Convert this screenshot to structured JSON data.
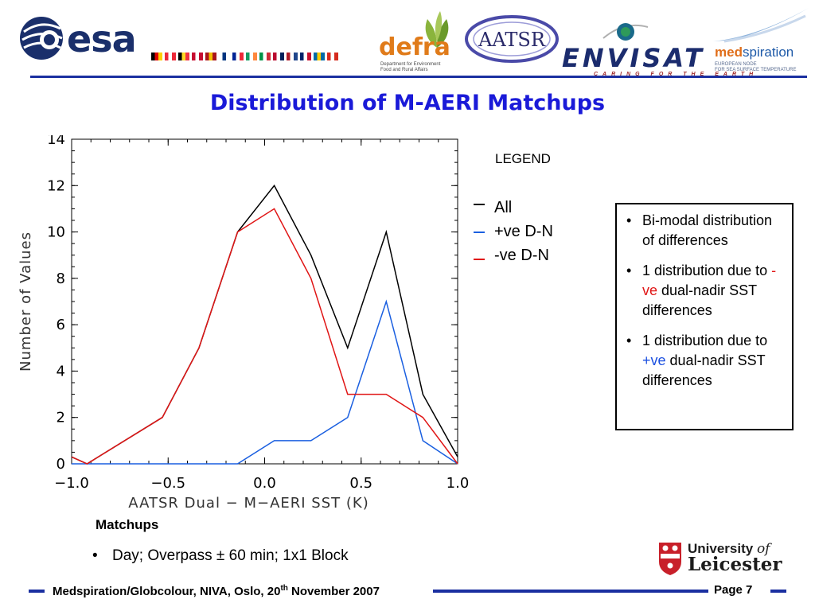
{
  "header": {
    "esa_text": "esa",
    "defra_word": "defra",
    "defra_sub": "Department for Environment Food and Rural Affairs",
    "aatsr_text": "AATSR",
    "envisat_word": "ENVISAT",
    "envisat_sub": "CARING FOR THE EARTH",
    "med_word_a": "med",
    "med_word_b": "spiration",
    "med_sub1": "EUROPEAN NODE",
    "med_sub2": "FOR SEA SURFACE TEMPERATURE",
    "flag_colors": [
      [
        "#000000",
        "#dd0000",
        "#ffce00"
      ],
      [
        "#ed2939",
        "#ffffff",
        "#ed2939"
      ],
      [
        "#000000",
        "#fdda24",
        "#ef3340"
      ],
      [
        "#c60c30",
        "#ffffff",
        "#c60c30"
      ],
      [
        "#aa151b",
        "#f1bf00",
        "#aa151b"
      ],
      [
        "#ffffff",
        "#003580",
        "#ffffff"
      ],
      [
        "#002395",
        "#ffffff",
        "#ed2939"
      ],
      [
        "#169b62",
        "#ffffff",
        "#ff883e"
      ],
      [
        "#009246",
        "#ffffff",
        "#ce2b37"
      ],
      [
        "#ba0c2f",
        "#ffffff",
        "#00205b"
      ],
      [
        "#ae1c28",
        "#ffffff",
        "#21468b"
      ],
      [
        "#012169",
        "#ffffff",
        "#c8102e"
      ],
      [
        "#006aa7",
        "#fecc00",
        "#006aa7"
      ],
      [
        "#d52b1e",
        "#ffffff",
        "#d52b1e"
      ]
    ]
  },
  "title": "Distribution of M-AERI Matchups",
  "chart_data": {
    "type": "line",
    "xlabel": "AATSR Dual − M−AERI SST (K)",
    "ylabel": "Number of Values",
    "xlim": [
      -1.0,
      1.0
    ],
    "ylim": [
      0,
      14
    ],
    "x_ticks": [
      -1.0,
      -0.5,
      0.0,
      0.5,
      1.0
    ],
    "x_tick_labels": [
      "−1.0",
      "−0.5",
      "0.0",
      "0.5",
      "1.0"
    ],
    "y_ticks": [
      0,
      2,
      4,
      6,
      8,
      10,
      12,
      14
    ],
    "y_tick_labels": [
      "0",
      "2",
      "4",
      "6",
      "8",
      "10",
      "12",
      "14"
    ],
    "grid": false,
    "series": [
      {
        "name": "All",
        "color": "#000000",
        "x": [
          -1.0,
          -0.92,
          -0.53,
          -0.34,
          -0.14,
          0.05,
          0.24,
          0.43,
          0.63,
          0.82,
          1.0
        ],
        "y": [
          0.3,
          0.0,
          2.0,
          5.0,
          10.0,
          12.0,
          9.0,
          5.0,
          10.0,
          3.0,
          0.3
        ]
      },
      {
        "name": "+ve D-N",
        "color": "#1a5fe0",
        "x": [
          -1.0,
          -0.14,
          0.05,
          0.24,
          0.43,
          0.63,
          0.82,
          1.0
        ],
        "y": [
          0.0,
          0.0,
          1.0,
          1.0,
          2.0,
          7.0,
          1.0,
          0.0
        ]
      },
      {
        "name": "-ve D-N",
        "color": "#e01515",
        "x": [
          -1.0,
          -0.92,
          -0.53,
          -0.34,
          -0.14,
          0.05,
          0.24,
          0.43,
          0.63,
          0.82,
          1.0
        ],
        "y": [
          0.3,
          0.0,
          2.0,
          5.0,
          10.0,
          11.0,
          8.0,
          3.0,
          3.0,
          2.0,
          0.0
        ]
      }
    ]
  },
  "legend": {
    "title": "LEGEND",
    "items": [
      {
        "label": "All",
        "color": "#000000"
      },
      {
        "label": "+ve D-N",
        "color": "#1a5fe0"
      },
      {
        "label": "-ve D-N",
        "color": "#e01515"
      }
    ]
  },
  "notes": {
    "item1": "Bi-modal distribution of differences",
    "item2_pre": "1 distribution due to ",
    "item2_hl": "-ve",
    "item2_post": " dual-nadir SST differences",
    "item3_pre": "1 distribution due to ",
    "item3_hl": "+ve",
    "item3_post": " dual-nadir SST differences"
  },
  "matchups": {
    "title": "Matchups",
    "item": "Day; Overpass ± 60 min; 1x1 Block"
  },
  "leicester": {
    "line1": "University ",
    "line1_of": "of",
    "line2": "Leicester"
  },
  "footer": {
    "text_pre": "Medspiration/Globcolour, NIVA, Oslo, 20",
    "text_sup": "th",
    "text_post": " November 2007",
    "page": "Page 7"
  }
}
